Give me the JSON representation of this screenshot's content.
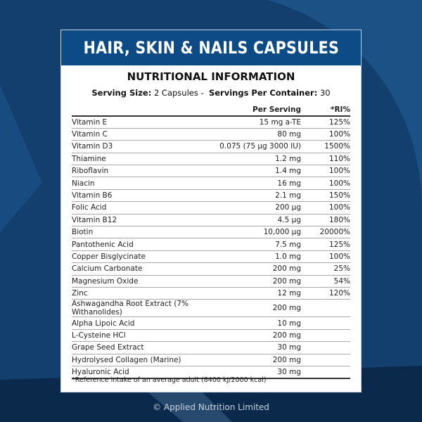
{
  "colors": {
    "background": "#0f3a66",
    "header_band": "#0d4b86"
  },
  "title": "HAIR, SKIN & NAILS CAPSULES",
  "subtitle": "NUTRITIONAL INFORMATION",
  "serving": {
    "size_label": "Serving Size:",
    "size_value": "2 Capsules -",
    "per_container_label": "Servings Per Container:",
    "per_container_value": "30"
  },
  "table": {
    "headers": [
      "",
      "Per Serving",
      "*RI%"
    ],
    "rows": [
      [
        "Vitamin E",
        "15 mg a-TE",
        "125%"
      ],
      [
        "Vitamin C",
        "80 mg",
        "100%"
      ],
      [
        "Vitamin D3",
        "0.075 (75 µg 3000 IU)",
        "1500%"
      ],
      [
        "Thiamine",
        "1.2 mg",
        "110%"
      ],
      [
        "Riboflavin",
        "1.4 mg",
        "100%"
      ],
      [
        "Niacin",
        "16 mg",
        "100%"
      ],
      [
        "Vitamin B6",
        "2.1 mg",
        "150%"
      ],
      [
        "Folic Acid",
        "200 µg",
        "100%"
      ],
      [
        "Vitamin B12",
        "4.5 µg",
        "180%"
      ],
      [
        "Biotin",
        "10,000 µg",
        "20000%"
      ],
      [
        "Pantothenic Acid",
        "7.5 mg",
        "125%"
      ],
      [
        "Copper Bisglycinate",
        "1.0 mg",
        "100%"
      ],
      [
        "Calcium Carbonate",
        "200 mg",
        "25%"
      ],
      [
        "Magnesium Oxide",
        "200 mg",
        "54%"
      ],
      [
        "Zinc",
        "12 mg",
        "120%"
      ],
      [
        "Ashwagandha Root Extract (7% Withanolides)",
        "200 mg",
        ""
      ],
      [
        "Alpha Lipoic Acid",
        "10 mg",
        ""
      ],
      [
        "L-Cysteine HCl",
        "200 mg",
        ""
      ],
      [
        "Grape Seed Extract",
        "30 mg",
        ""
      ],
      [
        "Hydrolysed Collagen (Marine)",
        "200 mg",
        ""
      ],
      [
        "Hyaluronic Acid",
        "30 mg",
        ""
      ]
    ]
  },
  "footnote": "*Reference intake of an average adult (8400 kJ/2000 kcal)",
  "copyright": "© Applied Nutrition Limited"
}
